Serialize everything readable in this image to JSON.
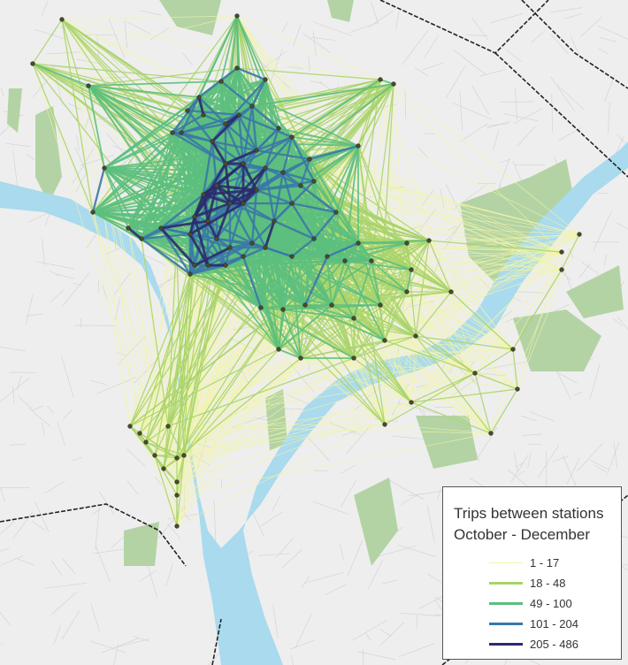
{
  "legend": {
    "title_line1": "Trips between stations",
    "title_line2": "October - December",
    "classes": [
      {
        "label": "1 - 17",
        "color": "#f2f5a6"
      },
      {
        "label": "18 - 48",
        "color": "#a8d46a"
      },
      {
        "label": "49 - 100",
        "color": "#5cbf7e"
      },
      {
        "label": "101 - 204",
        "color": "#3a78a8"
      },
      {
        "label": "205 - 486",
        "color": "#2b2a6e"
      }
    ]
  },
  "colors": {
    "water": "#a9daee",
    "park": "#b3d3a4",
    "land": "#eeeeee",
    "station": "#4a4a2a"
  }
}
